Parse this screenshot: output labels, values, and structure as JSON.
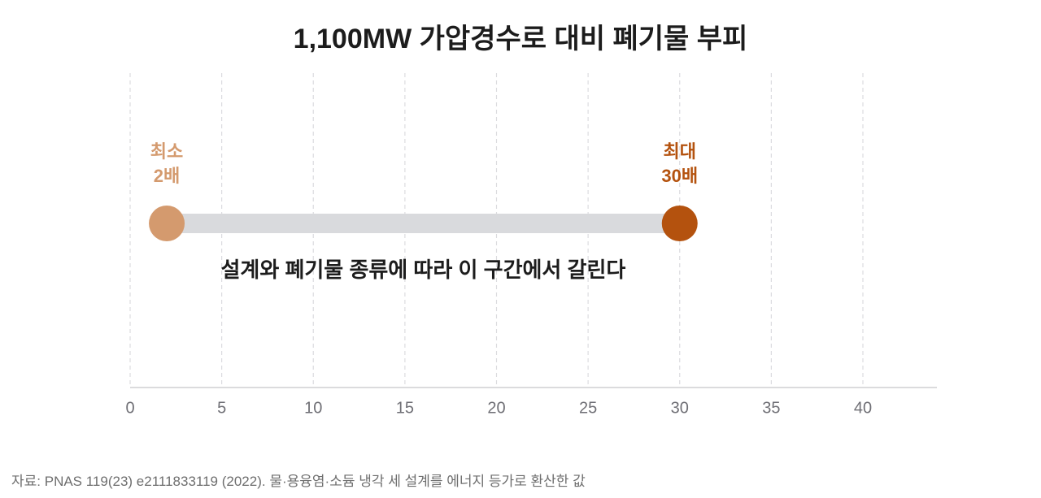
{
  "chart_data": {
    "type": "dumbbell",
    "title": "1,100MW 가압경수로 대비 폐기물 부피",
    "xlim": [
      0,
      44
    ],
    "xticks": [
      0,
      5,
      10,
      15,
      20,
      25,
      30,
      35,
      40
    ],
    "tick_labels": [
      "0",
      "5",
      "10",
      "15",
      "20",
      "25",
      "30",
      "35",
      "40"
    ],
    "grid": "vertical dashed",
    "range": {
      "min": 2,
      "max": 30
    },
    "points": [
      {
        "value": 2,
        "label_line1": "최소",
        "label_line2": "2배",
        "color": "#D49A6E"
      },
      {
        "value": 30,
        "label_line1": "최대",
        "label_line2": "30배",
        "color": "#B4520E"
      }
    ],
    "bar_color": "#D9DADD",
    "annotation": "설계와 폐기물 종류에 따라 이 구간에서 갈린다"
  },
  "footer": {
    "source": "자료: PNAS 119(23) e2111833119 (2022). 물·용융염·소듐 냉각 세 설계를 에너지 등가로 환산한 값"
  }
}
